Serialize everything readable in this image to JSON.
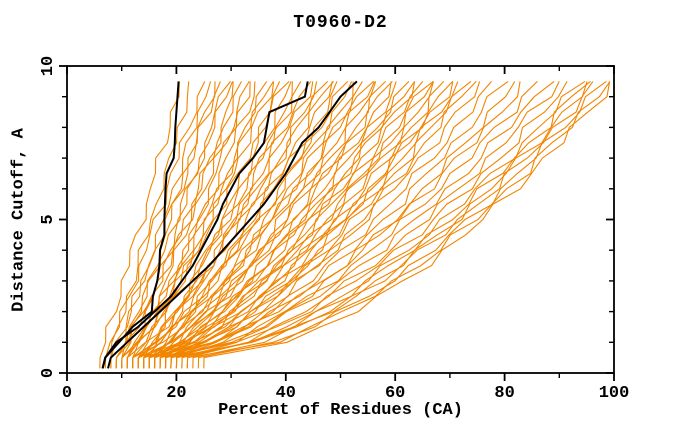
{
  "chart": {
    "title": "T0960-D2",
    "xlabel": "Percent of Residues (CA)",
    "ylabel": "Distance Cutoff, A"
  },
  "colors": {
    "orange_curve": "#F28500",
    "black_curve": "#000000",
    "axis": "#000000",
    "background": "#FFFFFF"
  },
  "chart_data": {
    "type": "line",
    "title": "T0960-D2",
    "xlabel": "Percent of Residues (CA)",
    "ylabel": "Distance Cutoff, A",
    "xlim": [
      0,
      100
    ],
    "ylim": [
      0,
      10
    ],
    "x_ticks": [
      0,
      20,
      40,
      60,
      80,
      100
    ],
    "x_minor_ticks": [
      10,
      30,
      50,
      70,
      90
    ],
    "y_ticks": [
      0,
      5,
      10
    ],
    "y_minor_ticks": [
      1,
      2,
      3,
      4,
      6,
      7,
      8,
      9
    ],
    "grid": false,
    "legend": false,
    "cutoffs": [
      0.5,
      1,
      1.5,
      2,
      2.5,
      3,
      3.5,
      4,
      4.5,
      5,
      5.5,
      6,
      6.5,
      7,
      7.5,
      8,
      8.5,
      9,
      9.5
    ],
    "black_series": [
      {
        "name": "black-model-1",
        "percents": [
          7,
          9.5,
          12,
          15.5,
          15.7,
          16.5,
          16.9,
          17,
          17.8,
          17.8,
          17.9,
          18,
          18.2,
          19.5,
          19.7,
          19.8,
          20,
          20.2,
          20.4
        ]
      },
      {
        "name": "black-model-2",
        "percents": [
          7,
          9,
          13,
          16,
          19,
          21,
          23,
          24.5,
          26,
          27.5,
          28.5,
          30,
          31.5,
          34,
          36,
          36.5,
          37,
          43.5,
          44
        ]
      },
      {
        "name": "black-model-3",
        "percents": [
          8,
          11,
          14,
          17,
          20,
          23,
          26,
          28.5,
          31,
          33.5,
          36,
          38,
          40,
          41.5,
          43,
          46,
          48,
          50,
          53
        ]
      }
    ],
    "orange_series": {
      "count": 68,
      "model": "percent(cutoff) = start + (top - start) * ((cutoff - 0.5) / 9) ^ gamma, with small sawtooth jitter; top = percent reached at 9.5 A, start = percent at 0.5 A",
      "tops": [
        21,
        23,
        25,
        26,
        27,
        28,
        29,
        30,
        31,
        32,
        33,
        34,
        35,
        36,
        37,
        38,
        39,
        40,
        41,
        42,
        43,
        44,
        45,
        46,
        47,
        48,
        49,
        50,
        51,
        52,
        53,
        54,
        55,
        56,
        57,
        58,
        59,
        60,
        61,
        62,
        63,
        64,
        65,
        66,
        67,
        68,
        69,
        70,
        71,
        72,
        73,
        74,
        76,
        78,
        80,
        82,
        84,
        86,
        88,
        90,
        92,
        94,
        95,
        96,
        97,
        98,
        99,
        100
      ],
      "starts": [
        6,
        8,
        7,
        9,
        10,
        8,
        11,
        9,
        12,
        10,
        13,
        9,
        11,
        14,
        10,
        12,
        15,
        11,
        13,
        16,
        10,
        14,
        12,
        16,
        11,
        15,
        13,
        17,
        12,
        16,
        14,
        18,
        12,
        16,
        14,
        18,
        13,
        17,
        15,
        19,
        13,
        17,
        15,
        19,
        14,
        18,
        16,
        20,
        14,
        18,
        16,
        20,
        15,
        19,
        17,
        21,
        15,
        19,
        17,
        21,
        18,
        22,
        19,
        23,
        20,
        24,
        22,
        25
      ],
      "gammas": [
        0.98,
        1.02,
        0.95,
        0.99,
        0.92,
        0.96,
        0.9,
        0.94,
        0.88,
        0.92,
        0.86,
        0.9,
        0.85,
        0.88,
        0.83,
        0.87,
        0.82,
        0.86,
        0.8,
        0.84,
        0.79,
        0.83,
        0.78,
        0.82,
        0.77,
        0.8,
        0.76,
        0.79,
        0.75,
        0.78,
        0.74,
        0.77,
        0.73,
        0.76,
        0.72,
        0.75,
        0.71,
        0.74,
        0.7,
        0.73,
        0.69,
        0.72,
        0.68,
        0.71,
        0.67,
        0.7,
        0.66,
        0.69,
        0.65,
        0.68,
        0.64,
        0.67,
        0.63,
        0.66,
        0.62,
        0.65,
        0.61,
        0.64,
        0.6,
        0.63,
        0.59,
        0.62,
        0.58,
        0.6,
        0.57,
        0.58,
        0.55,
        0.56
      ]
    }
  }
}
